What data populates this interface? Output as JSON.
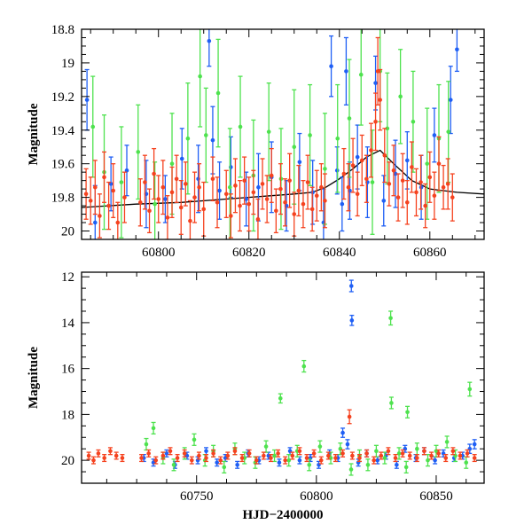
{
  "colors": {
    "blue": "#1f5ff5",
    "green": "#4ee24e",
    "red": "#f5421f",
    "model": "#000000",
    "axes": "#000000"
  },
  "chart_data": [
    {
      "type": "scatter",
      "title": "",
      "xlabel": "",
      "ylabel": "Magnitude",
      "xlim": [
        60783,
        60872
      ],
      "ylim": [
        20.05,
        18.8
      ],
      "y_inverted": true,
      "xticks": [
        60800,
        60820,
        60840,
        60860
      ],
      "xtick_labels": [
        "60800",
        "60820",
        "60840",
        "60860"
      ],
      "yticks": [
        18.8,
        19,
        19.2,
        19.4,
        19.6,
        19.8,
        20
      ],
      "ytick_labels": [
        "18.8",
        "19",
        "19.2",
        "19.4",
        "19.6",
        "19.8",
        "20"
      ],
      "grid": false,
      "legend": "none",
      "model_curve": {
        "x": [
          60783,
          60795,
          60805,
          60815,
          60825,
          60830,
          60834,
          60837,
          60840,
          60843,
          60846,
          60849,
          60852,
          60856,
          60860,
          60866,
          60872
        ],
        "y": [
          19.86,
          19.84,
          19.83,
          19.81,
          19.79,
          19.78,
          19.77,
          19.74,
          19.69,
          19.63,
          19.56,
          19.52,
          19.6,
          19.7,
          19.75,
          19.77,
          19.78
        ]
      },
      "series": [
        {
          "color": "blue",
          "x": [
            60784.2,
            60786.0,
            60789.5,
            60793.0,
            60797.3,
            60801.5,
            60805.2,
            60808.8,
            60811.2,
            60812.0,
            60813.5,
            60816.0,
            60819.4,
            60822.1,
            60825.0,
            60828.3,
            60831.2,
            60834.1,
            60836.5,
            60838.2,
            60839.5,
            60840.6,
            60841.5,
            60842.3,
            60844.0,
            60846.2,
            60848.0,
            60849.8,
            60852.4,
            60855.0,
            60858.1,
            60861.0,
            60864.6,
            60866.0
          ],
          "y": [
            19.22,
            19.95,
            19.72,
            19.64,
            19.78,
            19.81,
            19.57,
            19.69,
            18.87,
            19.46,
            19.76,
            19.62,
            19.81,
            19.74,
            19.68,
            19.85,
            19.59,
            19.77,
            19.95,
            19.02,
            19.64,
            19.84,
            19.05,
            19.76,
            19.56,
            19.71,
            19.12,
            19.82,
            19.66,
            19.58,
            19.74,
            19.43,
            19.22,
            18.92
          ],
          "err": [
            0.18,
            0.22,
            0.16,
            0.15,
            0.2,
            0.14,
            0.18,
            0.2,
            0.15,
            0.2,
            0.17,
            0.18,
            0.16,
            0.2,
            0.21,
            0.15,
            0.17,
            0.19,
            0.2,
            0.18,
            0.14,
            0.16,
            0.2,
            0.17,
            0.19,
            0.21,
            0.16,
            0.15,
            0.2,
            0.17,
            0.19,
            0.16,
            0.2,
            0.13
          ]
        },
        {
          "color": "green",
          "x": [
            60785.5,
            60788.0,
            60791.8,
            60795.5,
            60799.2,
            60803.0,
            60806.5,
            60809.2,
            60810.5,
            60813.2,
            60815.8,
            60818.1,
            60821.0,
            60824.4,
            60827.1,
            60830.0,
            60833.5,
            60836.8,
            60839.6,
            60842.2,
            60844.8,
            60847.3,
            60849.0,
            60850.6,
            60853.5,
            60856.3,
            60859.4,
            60862.0,
            60864.1
          ],
          "y": [
            19.38,
            19.65,
            19.71,
            19.53,
            19.84,
            19.6,
            19.45,
            19.08,
            19.43,
            19.18,
            19.74,
            19.38,
            19.67,
            19.41,
            19.69,
            19.5,
            19.43,
            19.63,
            19.45,
            19.33,
            19.07,
            19.71,
            19.05,
            19.39,
            19.2,
            19.35,
            19.6,
            19.45,
            19.41
          ],
          "err": [
            0.3,
            0.34,
            0.33,
            0.28,
            0.25,
            0.3,
            0.33,
            0.3,
            0.28,
            0.32,
            0.35,
            0.3,
            0.33,
            0.29,
            0.3,
            0.34,
            0.3,
            0.33,
            0.32,
            0.35,
            0.3,
            0.31,
            0.3,
            0.33,
            0.28,
            0.3,
            0.33,
            0.32,
            0.3
          ]
        },
        {
          "color": "red",
          "x": [
            60784.0,
            60785.0,
            60786.0,
            60787.0,
            60788.0,
            60789.0,
            60790.0,
            60791.0,
            60792.5,
            60796.0,
            60797.0,
            60798.0,
            60799.0,
            60800.0,
            60801.0,
            60802.0,
            60803.0,
            60804.0,
            60805.0,
            60806.0,
            60807.0,
            60808.0,
            60809.0,
            60810.0,
            60812.0,
            60813.0,
            60815.0,
            60816.0,
            60817.0,
            60818.0,
            60819.0,
            60820.0,
            60821.0,
            60822.0,
            60823.0,
            60824.0,
            60825.0,
            60826.0,
            60827.0,
            60828.0,
            60829.0,
            60830.0,
            60831.0,
            60832.0,
            60833.0,
            60834.0,
            60835.0,
            60836.0,
            60836.8,
            60841.0,
            60842.0,
            60843.0,
            60844.0,
            60845.0,
            60846.0,
            60847.0,
            60848.0,
            60848.5,
            60849.0,
            60850.0,
            60851.0,
            60852.0,
            60853.0,
            60854.0,
            60855.0,
            60856.0,
            60857.0,
            60858.0,
            60859.0,
            60860.0,
            60861.0,
            60862.0,
            60863.0,
            60864.0,
            60865.0
          ],
          "y": [
            19.78,
            19.82,
            19.74,
            19.91,
            19.68,
            19.85,
            19.76,
            19.95,
            19.8,
            19.83,
            19.71,
            19.88,
            19.66,
            19.81,
            19.74,
            19.92,
            19.77,
            19.69,
            19.86,
            19.72,
            19.94,
            19.8,
            19.74,
            19.87,
            19.69,
            19.83,
            19.78,
            19.91,
            19.73,
            19.85,
            19.7,
            19.84,
            19.77,
            19.93,
            19.72,
            19.81,
            19.67,
            19.88,
            19.75,
            19.83,
            19.7,
            19.9,
            19.76,
            19.84,
            19.71,
            19.87,
            19.79,
            19.74,
            19.82,
            19.66,
            19.74,
            19.61,
            19.78,
            19.58,
            19.69,
            19.52,
            19.35,
            19.05,
            19.22,
            19.55,
            19.72,
            19.64,
            19.8,
            19.7,
            19.83,
            19.62,
            19.77,
            19.71,
            19.85,
            19.68,
            19.79,
            19.6,
            19.74,
            19.72,
            19.8
          ],
          "err": [
            0.15,
            0.14,
            0.16,
            0.13,
            0.15,
            0.14,
            0.16,
            0.12,
            0.15,
            0.14,
            0.16,
            0.13,
            0.15,
            0.14,
            0.16,
            0.13,
            0.15,
            0.14,
            0.16,
            0.13,
            0.12,
            0.15,
            0.14,
            0.16,
            0.13,
            0.15,
            0.14,
            0.13,
            0.16,
            0.15,
            0.14,
            0.16,
            0.13,
            0.12,
            0.15,
            0.14,
            0.16,
            0.13,
            0.15,
            0.14,
            0.16,
            0.13,
            0.15,
            0.14,
            0.16,
            0.13,
            0.15,
            0.14,
            0.16,
            0.15,
            0.14,
            0.16,
            0.13,
            0.15,
            0.14,
            0.16,
            0.17,
            0.2,
            0.18,
            0.16,
            0.13,
            0.15,
            0.14,
            0.16,
            0.13,
            0.15,
            0.14,
            0.16,
            0.13,
            0.15,
            0.14,
            0.16,
            0.13,
            0.15,
            0.14
          ]
        }
      ]
    },
    {
      "type": "scatter",
      "title": "",
      "xlabel": "HJD−2400000",
      "ylabel": "Magnitude",
      "xlim": [
        60702,
        60870
      ],
      "ylim": [
        21.0,
        11.8
      ],
      "y_inverted": true,
      "xticks": [
        60750,
        60800,
        60850
      ],
      "xtick_labels": [
        "60750",
        "60800",
        "60850"
      ],
      "yticks": [
        12,
        14,
        16,
        18,
        20
      ],
      "ytick_labels": [
        "12",
        "14",
        "16",
        "18",
        "20"
      ],
      "grid": false,
      "legend": "none",
      "series": [
        {
          "color": "blue",
          "x": [
            60728.0,
            60732.0,
            60737.5,
            60741.0,
            60746.0,
            60750.5,
            60754.0,
            60758.5,
            60762.0,
            60767.0,
            60771.5,
            60776.0,
            60780.0,
            60784.5,
            60789.0,
            60793.0,
            60797.5,
            60801.0,
            60805.5,
            60809.0,
            60811.0,
            60813.0,
            60814.6,
            60814.8,
            60817.5,
            60821.0,
            60825.5,
            60829.0,
            60833.5,
            60837.0,
            60841.5,
            60845.0,
            60849.5,
            60853.0,
            60857.5,
            60861.0,
            60864.0,
            60866.0
          ],
          "y": [
            19.9,
            20.1,
            19.7,
            20.2,
            19.8,
            20.0,
            19.6,
            20.1,
            19.9,
            20.2,
            19.7,
            20.0,
            19.8,
            20.1,
            19.6,
            20.0,
            19.9,
            20.2,
            19.7,
            19.9,
            18.8,
            19.3,
            12.4,
            13.9,
            20.1,
            19.7,
            20.0,
            19.8,
            20.2,
            19.5,
            19.9,
            19.6,
            20.0,
            19.7,
            19.9,
            19.8,
            19.5,
            19.3
          ],
          "err": [
            0.15,
            0.15,
            0.15,
            0.15,
            0.15,
            0.15,
            0.15,
            0.15,
            0.15,
            0.15,
            0.15,
            0.15,
            0.15,
            0.15,
            0.15,
            0.15,
            0.15,
            0.15,
            0.15,
            0.15,
            0.2,
            0.2,
            0.25,
            0.22,
            0.15,
            0.15,
            0.15,
            0.15,
            0.15,
            0.15,
            0.15,
            0.15,
            0.15,
            0.15,
            0.15,
            0.15,
            0.2,
            0.2
          ]
        },
        {
          "color": "green",
          "x": [
            60729.0,
            60732.0,
            60736.0,
            60740.5,
            60745.0,
            60749.0,
            60753.5,
            60757.0,
            60761.5,
            60766.0,
            60770.0,
            60774.5,
            60779.0,
            60782.5,
            60785.0,
            60788.5,
            60792.0,
            60794.8,
            60797.0,
            60801.5,
            60806.0,
            60810.0,
            60814.5,
            60818.0,
            60821.5,
            60825.0,
            60828.5,
            60831.0,
            60831.3,
            60834.5,
            60837.5,
            60838.0,
            60842.0,
            60846.5,
            60850.0,
            60854.5,
            60858.0,
            60862.5,
            60864.0
          ],
          "y": [
            19.3,
            18.6,
            19.9,
            20.2,
            19.7,
            19.1,
            20.0,
            19.6,
            20.3,
            19.5,
            19.9,
            20.1,
            19.4,
            19.8,
            17.3,
            20.0,
            19.6,
            15.9,
            20.2,
            19.4,
            19.9,
            19.5,
            20.4,
            19.8,
            20.2,
            19.6,
            19.9,
            13.8,
            17.5,
            19.7,
            20.3,
            17.9,
            19.5,
            20.0,
            19.6,
            19.2,
            19.8,
            20.1,
            16.9
          ],
          "err": [
            0.25,
            0.25,
            0.25,
            0.25,
            0.25,
            0.25,
            0.25,
            0.25,
            0.25,
            0.25,
            0.25,
            0.25,
            0.25,
            0.25,
            0.2,
            0.25,
            0.25,
            0.25,
            0.25,
            0.25,
            0.25,
            0.25,
            0.25,
            0.25,
            0.25,
            0.25,
            0.25,
            0.3,
            0.25,
            0.25,
            0.25,
            0.25,
            0.25,
            0.25,
            0.25,
            0.25,
            0.25,
            0.25,
            0.3
          ]
        },
        {
          "color": "red",
          "x": [
            60705.0,
            60707.0,
            60709.0,
            60711.5,
            60714.0,
            60716.5,
            60719.0,
            60727.0,
            60730.0,
            60733.0,
            60736.0,
            60739.0,
            60742.0,
            60745.0,
            60748.0,
            60751.0,
            60754.0,
            60757.0,
            60760.0,
            60763.0,
            60766.0,
            60769.0,
            60772.0,
            60775.0,
            60778.0,
            60781.0,
            60784.0,
            60787.0,
            60790.0,
            60793.0,
            60796.0,
            60799.0,
            60802.0,
            60805.0,
            60808.0,
            60811.0,
            60813.8,
            60815.0,
            60818.0,
            60821.0,
            60824.0,
            60827.0,
            60830.0,
            60833.0,
            60836.0,
            60839.0,
            60842.0,
            60845.0,
            60848.0,
            60851.0,
            60854.0,
            60857.0,
            60860.0,
            60863.0,
            60866.0
          ],
          "y": [
            19.8,
            20.0,
            19.7,
            19.9,
            19.6,
            19.8,
            19.9,
            19.9,
            19.7,
            20.0,
            19.8,
            19.6,
            19.9,
            19.7,
            20.0,
            19.8,
            19.9,
            19.7,
            20.0,
            19.8,
            19.6,
            19.9,
            19.7,
            20.0,
            19.8,
            19.9,
            19.7,
            20.0,
            19.8,
            19.6,
            19.9,
            19.7,
            20.0,
            19.8,
            19.9,
            19.7,
            18.1,
            19.8,
            19.9,
            19.7,
            20.0,
            19.8,
            19.6,
            19.9,
            19.7,
            19.8,
            19.9,
            19.6,
            19.8,
            19.7,
            19.9,
            19.6,
            19.8,
            19.7,
            19.9
          ],
          "err": [
            0.15,
            0.15,
            0.15,
            0.15,
            0.15,
            0.15,
            0.15,
            0.15,
            0.15,
            0.15,
            0.15,
            0.15,
            0.15,
            0.15,
            0.15,
            0.15,
            0.15,
            0.15,
            0.15,
            0.15,
            0.15,
            0.15,
            0.15,
            0.15,
            0.15,
            0.15,
            0.15,
            0.15,
            0.15,
            0.15,
            0.15,
            0.15,
            0.15,
            0.15,
            0.15,
            0.15,
            0.3,
            0.15,
            0.15,
            0.15,
            0.15,
            0.15,
            0.15,
            0.15,
            0.15,
            0.15,
            0.15,
            0.15,
            0.15,
            0.15,
            0.15,
            0.15,
            0.15,
            0.15,
            0.15
          ]
        }
      ]
    }
  ]
}
